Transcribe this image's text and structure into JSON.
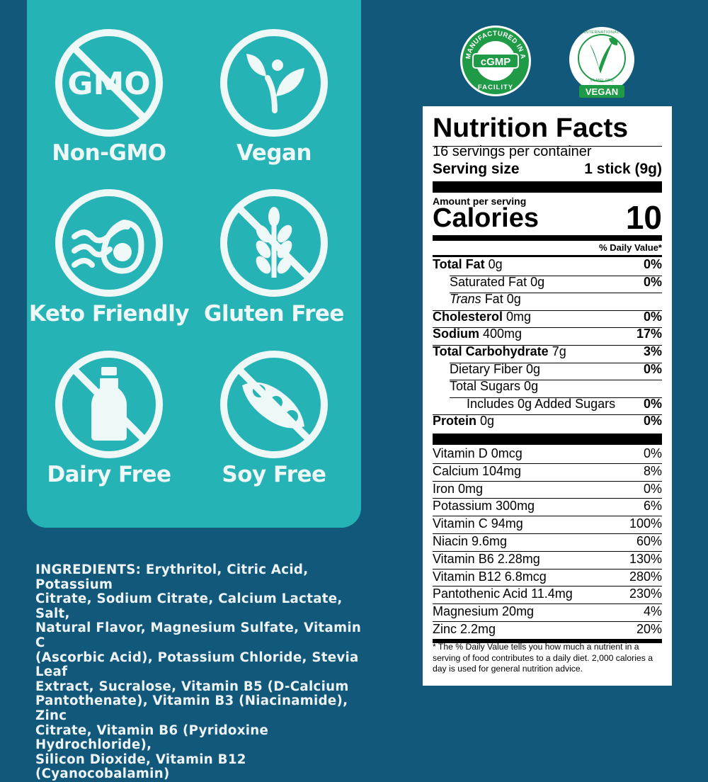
{
  "badges": [
    {
      "label": "Non-GMO",
      "icon": "no-gmo-icon",
      "icon_text": "GMO"
    },
    {
      "label": "Vegan",
      "icon": "vegan-plant-icon"
    },
    {
      "label": "Keto Friendly",
      "icon": "avocado-bacon-icon"
    },
    {
      "label": "Gluten Free",
      "icon": "no-wheat-icon"
    },
    {
      "label": "Dairy Free",
      "icon": "no-milk-icon"
    },
    {
      "label": "Soy Free",
      "icon": "no-soy-icon"
    }
  ],
  "certifications": {
    "cgmp": {
      "arc_top": "MANUFACTURED IN A",
      "center": "cGMP",
      "arc_bottom": "FACILITY"
    },
    "vegan": {
      "arc_top": "INTERNATIONAL",
      "arc_bottom": "V-LABEL.ORG",
      "label": "VEGAN"
    }
  },
  "ingredients": {
    "heading": "INGREDIENTS:",
    "lines": [
      " Erythritol, Citric Acid, Potassium",
      "Citrate, Sodium Citrate, Calcium Lactate, Salt,",
      "Natural Flavor, Magnesium Sulfate, Vitamin C",
      "(Ascorbic Acid), Potassium Chloride, Stevia Leaf",
      "Extract, Sucralose, Vitamin B5 (D-Calcium",
      "Pantothenate), Vitamin B3 (Niacinamide), Zinc",
      "Citrate, Vitamin B6 (Pyridoxine Hydrochloride),",
      "Silicon Dioxide, Vitamin B12 (Cyanocobalamin)"
    ]
  },
  "nutrition": {
    "title": "Nutrition Facts",
    "servings": "16 servings per container",
    "serving_size_label": "Serving size",
    "serving_size_value": "1 stick (9g)",
    "amount_per_serving": "Amount per serving",
    "calories_label": "Calories",
    "calories_value": "10",
    "dv_header": "% Daily Value*",
    "nutrients": [
      {
        "name": "Total Fat",
        "amount": " 0g",
        "dv": "0%",
        "bold": true,
        "indent": 0
      },
      {
        "name": "Saturated Fat 0g",
        "amount": "",
        "dv": "0%",
        "bold": false,
        "indent": 1
      },
      {
        "name": "Trans",
        "amount": " Fat 0g",
        "dv": "",
        "bold": false,
        "indent": 1,
        "italic": true
      },
      {
        "name": "Cholesterol",
        "amount": " 0mg",
        "dv": "0%",
        "bold": true,
        "indent": 0
      },
      {
        "name": "Sodium",
        "amount": " 400mg",
        "dv": "17%",
        "bold": true,
        "indent": 0
      },
      {
        "name": "Total Carbohydrate",
        "amount": " 7g",
        "dv": "3%",
        "bold": true,
        "indent": 0
      },
      {
        "name": "Dietary Fiber 0g",
        "amount": "",
        "dv": "0%",
        "bold": false,
        "indent": 1
      },
      {
        "name": "Total Sugars 0g",
        "amount": "",
        "dv": "",
        "bold": false,
        "indent": 1
      },
      {
        "name": "Includes 0g Added Sugars",
        "amount": "",
        "dv": "0%",
        "bold": false,
        "indent": 2
      },
      {
        "name": "Protein",
        "amount": " 0g",
        "dv": "0%",
        "bold": true,
        "indent": 0
      }
    ],
    "vitamins": [
      {
        "name": "Vitamin D 0mcg",
        "dv": "0%"
      },
      {
        "name": "Calcium 104mg",
        "dv": "8%"
      },
      {
        "name": "Iron 0mg",
        "dv": "0%"
      },
      {
        "name": "Potassium 300mg",
        "dv": "6%"
      },
      {
        "name": "Vitamin C 94mg",
        "dv": "100%"
      },
      {
        "name": "Niacin 9.6mg",
        "dv": "60%"
      },
      {
        "name": "Vitamin B6 2.28mg",
        "dv": "130%"
      },
      {
        "name": "Vitamin B12 6.8mcg",
        "dv": "280%"
      },
      {
        "name": "Pantothenic Acid 11.4mg",
        "dv": "230%"
      },
      {
        "name": "Magnesium 20mg",
        "dv": "4%"
      },
      {
        "name": "Zinc 2.2mg",
        "dv": "20%"
      }
    ],
    "footnote": "* The % Daily Value tells you how much a nutrient in a serving of food contributes to a daily diet. 2,000 calories a day is used for general nutrition advice."
  },
  "colors": {
    "background": "#12587a",
    "panel": "#26b3b6",
    "icon": "#eef8f7",
    "cgmp_green": "#1f9a46"
  }
}
